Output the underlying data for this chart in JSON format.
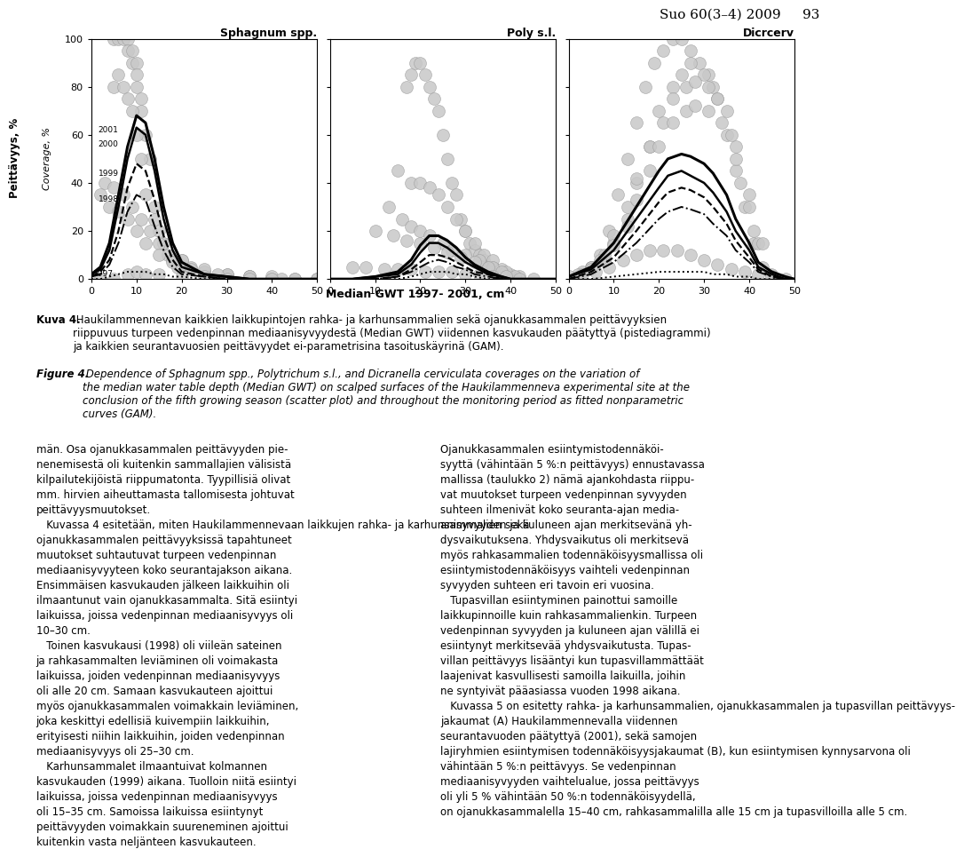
{
  "title_header": "Suo 60(3–4) 2009     93",
  "subplot_titles": [
    "Sphagnum spp.",
    "Poly s.l.",
    "Dicrcerv"
  ],
  "xlabel": "Median GWT 1997- 2001, cm",
  "ylabel1": "Peittävyys, %",
  "ylabel2": "Coverage, %",
  "ylim": [
    0,
    100
  ],
  "xlim": [
    0,
    50
  ],
  "xticks": [
    0,
    10,
    20,
    30,
    40,
    50
  ],
  "yticks": [
    0,
    20,
    40,
    60,
    80,
    100
  ],
  "years": [
    "2001",
    "2000",
    "1999",
    "1998",
    "1997"
  ],
  "scatter_color": "#c8c8c8",
  "scatter_alpha": 0.85,
  "background_color": "#ffffff",
  "scatter_size": 100,
  "sphagnum_scatter_x": [
    5,
    6,
    7,
    8,
    8,
    9,
    9,
    10,
    10,
    10,
    11,
    11,
    12,
    13,
    14,
    15,
    16,
    17,
    18,
    19,
    20,
    22,
    25,
    30,
    35,
    40,
    5,
    6,
    7,
    8,
    9,
    10,
    11,
    12,
    14,
    16,
    20,
    25,
    30,
    3,
    5,
    7,
    9,
    11,
    13,
    15,
    20,
    25,
    30,
    35,
    40,
    45,
    50,
    2,
    4,
    6,
    8,
    10,
    12,
    15,
    18,
    22,
    28,
    35,
    42,
    0,
    2,
    5,
    8,
    10,
    12,
    15,
    20,
    25,
    30,
    35,
    40,
    45,
    50
  ],
  "sphagnum_scatter_y": [
    100,
    100,
    100,
    100,
    95,
    90,
    95,
    90,
    85,
    80,
    75,
    70,
    60,
    50,
    30,
    20,
    15,
    10,
    8,
    5,
    5,
    5,
    3,
    2,
    1,
    0,
    80,
    85,
    80,
    75,
    70,
    60,
    50,
    35,
    25,
    15,
    8,
    3,
    1,
    40,
    38,
    35,
    30,
    25,
    20,
    15,
    8,
    4,
    2,
    1,
    1,
    0,
    0,
    35,
    30,
    28,
    25,
    20,
    15,
    10,
    7,
    4,
    2,
    1,
    0,
    0,
    0,
    0,
    2,
    3,
    2,
    2,
    1,
    1,
    0,
    0,
    0,
    0,
    0
  ],
  "poly_scatter_x": [
    17,
    18,
    19,
    20,
    21,
    22,
    23,
    24,
    25,
    26,
    27,
    28,
    29,
    30,
    31,
    32,
    33,
    34,
    35,
    36,
    37,
    38,
    39,
    40,
    15,
    18,
    20,
    22,
    24,
    26,
    28,
    30,
    32,
    34,
    36,
    38,
    40,
    13,
    16,
    18,
    20,
    22,
    25,
    27,
    30,
    33,
    36,
    39,
    42,
    10,
    14,
    17,
    20,
    23,
    26,
    29,
    32,
    35,
    38,
    41,
    5,
    8,
    12,
    15,
    18,
    21,
    24,
    27,
    30,
    33,
    36,
    39,
    42,
    45
  ],
  "poly_scatter_y": [
    80,
    85,
    90,
    90,
    85,
    80,
    75,
    70,
    60,
    50,
    40,
    35,
    25,
    20,
    15,
    12,
    10,
    8,
    5,
    5,
    3,
    2,
    1,
    0,
    45,
    40,
    40,
    38,
    35,
    30,
    25,
    20,
    15,
    10,
    8,
    4,
    2,
    30,
    25,
    22,
    20,
    18,
    15,
    12,
    10,
    8,
    5,
    3,
    1,
    20,
    18,
    16,
    15,
    13,
    11,
    9,
    7,
    5,
    3,
    1,
    5,
    5,
    4,
    4,
    4,
    3,
    3,
    3,
    2,
    2,
    1,
    1,
    0,
    0
  ],
  "dicrcerv_scatter_x": [
    5,
    7,
    9,
    11,
    13,
    15,
    17,
    19,
    21,
    23,
    25,
    27,
    29,
    31,
    33,
    35,
    37,
    39,
    41,
    43,
    45,
    5,
    8,
    10,
    13,
    15,
    18,
    20,
    23,
    25,
    27,
    30,
    32,
    35,
    37,
    40,
    42,
    3,
    5,
    8,
    10,
    13,
    15,
    18,
    21,
    23,
    26,
    28,
    31,
    33,
    36,
    38,
    41,
    2,
    5,
    7,
    10,
    13,
    15,
    18,
    20,
    23,
    26,
    28,
    31,
    34,
    37,
    40,
    43,
    0,
    3,
    6,
    9,
    12,
    15,
    18,
    21,
    24,
    27,
    30,
    33,
    36,
    39,
    42,
    45,
    48
  ],
  "dicrcerv_scatter_y": [
    5,
    10,
    20,
    35,
    50,
    65,
    80,
    90,
    95,
    100,
    100,
    95,
    90,
    85,
    75,
    60,
    45,
    30,
    15,
    5,
    2,
    5,
    8,
    15,
    25,
    40,
    55,
    70,
    80,
    85,
    90,
    85,
    80,
    70,
    55,
    35,
    15,
    3,
    5,
    10,
    18,
    30,
    42,
    55,
    65,
    75,
    80,
    82,
    80,
    75,
    60,
    40,
    20,
    2,
    4,
    8,
    14,
    22,
    33,
    45,
    55,
    65,
    70,
    72,
    70,
    65,
    50,
    30,
    15,
    1,
    2,
    3,
    5,
    8,
    10,
    12,
    12,
    12,
    10,
    8,
    6,
    4,
    3,
    2,
    1,
    0
  ],
  "line_styles": {
    "2001": {
      "ls": "-",
      "lw": 2.2,
      "color": "#000000"
    },
    "2000": {
      "ls": "-",
      "lw": 1.8,
      "color": "#000000"
    },
    "1999": {
      "ls": "--",
      "lw": 1.6,
      "color": "#000000"
    },
    "1998": {
      "ls": "-.",
      "lw": 1.4,
      "color": "#000000"
    },
    "1997": {
      "ls": ":",
      "lw": 1.4,
      "color": "#000000"
    }
  },
  "sphagnum_gam": {
    "2001": {
      "x": [
        0,
        2,
        4,
        6,
        8,
        10,
        12,
        14,
        16,
        18,
        20,
        25,
        30,
        35,
        40,
        45,
        50
      ],
      "y": [
        2,
        5,
        15,
        35,
        55,
        68,
        65,
        50,
        30,
        15,
        7,
        2,
        1,
        0,
        0,
        0,
        0
      ]
    },
    "2000": {
      "x": [
        0,
        2,
        4,
        6,
        8,
        10,
        12,
        14,
        16,
        18,
        20,
        25,
        30,
        35,
        40,
        45,
        50
      ],
      "y": [
        2,
        4,
        12,
        30,
        50,
        63,
        60,
        45,
        25,
        12,
        5,
        2,
        1,
        0,
        0,
        0,
        0
      ]
    },
    "1999": {
      "x": [
        0,
        2,
        4,
        6,
        8,
        10,
        12,
        14,
        16,
        18,
        20,
        25,
        30,
        35,
        40,
        45,
        50
      ],
      "y": [
        1,
        3,
        8,
        20,
        38,
        48,
        45,
        33,
        18,
        8,
        3,
        1,
        0,
        0,
        0,
        0,
        0
      ]
    },
    "1998": {
      "x": [
        0,
        2,
        4,
        6,
        8,
        10,
        12,
        14,
        16,
        18,
        20,
        25,
        30,
        35,
        40,
        45,
        50
      ],
      "y": [
        1,
        2,
        6,
        15,
        28,
        35,
        33,
        22,
        12,
        5,
        2,
        1,
        0,
        0,
        0,
        0,
        0
      ]
    },
    "1997": {
      "x": [
        0,
        2,
        4,
        6,
        8,
        10,
        12,
        14,
        16,
        18,
        20,
        25,
        30,
        35,
        40,
        45,
        50
      ],
      "y": [
        0,
        0,
        1,
        2,
        3,
        3,
        3,
        2,
        2,
        1,
        1,
        0,
        0,
        0,
        0,
        0,
        0
      ]
    }
  },
  "poly_gam": {
    "2001": {
      "x": [
        0,
        5,
        10,
        15,
        18,
        20,
        22,
        24,
        26,
        28,
        30,
        32,
        35,
        38,
        40,
        45,
        50
      ],
      "y": [
        0,
        0,
        1,
        3,
        8,
        14,
        18,
        18,
        16,
        13,
        9,
        6,
        3,
        1,
        0,
        0,
        0
      ]
    },
    "2000": {
      "x": [
        0,
        5,
        10,
        15,
        18,
        20,
        22,
        24,
        26,
        28,
        30,
        32,
        35,
        38,
        40,
        45,
        50
      ],
      "y": [
        0,
        0,
        1,
        2,
        6,
        11,
        15,
        15,
        13,
        10,
        7,
        5,
        2,
        1,
        0,
        0,
        0
      ]
    },
    "1999": {
      "x": [
        0,
        5,
        10,
        15,
        18,
        20,
        22,
        24,
        26,
        28,
        30,
        32,
        35,
        38,
        40,
        45,
        50
      ],
      "y": [
        0,
        0,
        0,
        1,
        4,
        7,
        10,
        10,
        9,
        7,
        5,
        3,
        2,
        0,
        0,
        0,
        0
      ]
    },
    "1998": {
      "x": [
        0,
        5,
        10,
        15,
        18,
        20,
        22,
        24,
        26,
        28,
        30,
        32,
        35,
        38,
        40,
        45,
        50
      ],
      "y": [
        0,
        0,
        0,
        1,
        3,
        5,
        7,
        8,
        7,
        5,
        4,
        2,
        1,
        0,
        0,
        0,
        0
      ]
    },
    "1997": {
      "x": [
        0,
        5,
        10,
        15,
        18,
        20,
        22,
        24,
        26,
        28,
        30,
        32,
        35,
        38,
        40,
        45,
        50
      ],
      "y": [
        0,
        0,
        0,
        0,
        1,
        2,
        3,
        3,
        3,
        2,
        2,
        1,
        0,
        0,
        0,
        0,
        0
      ]
    }
  },
  "dicrcerv_gam": {
    "2001": {
      "x": [
        0,
        5,
        10,
        15,
        20,
        22,
        25,
        27,
        30,
        32,
        35,
        37,
        40,
        42,
        45,
        48,
        50
      ],
      "y": [
        1,
        5,
        15,
        30,
        45,
        50,
        52,
        51,
        48,
        44,
        35,
        25,
        15,
        7,
        3,
        1,
        0
      ]
    },
    "2000": {
      "x": [
        0,
        5,
        10,
        15,
        20,
        22,
        25,
        27,
        30,
        32,
        35,
        37,
        40,
        42,
        45,
        48,
        50
      ],
      "y": [
        1,
        4,
        12,
        25,
        38,
        43,
        45,
        43,
        40,
        36,
        28,
        20,
        12,
        5,
        2,
        0,
        0
      ]
    },
    "1999": {
      "x": [
        0,
        5,
        10,
        15,
        20,
        22,
        25,
        27,
        30,
        32,
        35,
        37,
        40,
        42,
        45,
        48,
        50
      ],
      "y": [
        0,
        3,
        9,
        20,
        32,
        36,
        38,
        37,
        34,
        30,
        23,
        16,
        9,
        4,
        1,
        0,
        0
      ]
    },
    "1998": {
      "x": [
        0,
        5,
        10,
        15,
        20,
        22,
        25,
        27,
        30,
        32,
        35,
        37,
        40,
        42,
        45,
        48,
        50
      ],
      "y": [
        0,
        2,
        7,
        15,
        25,
        28,
        30,
        29,
        27,
        23,
        18,
        12,
        7,
        3,
        1,
        0,
        0
      ]
    },
    "1997": {
      "x": [
        0,
        5,
        10,
        15,
        20,
        22,
        25,
        27,
        30,
        32,
        35,
        37,
        40,
        42,
        45,
        48,
        50
      ],
      "y": [
        0,
        0,
        1,
        2,
        3,
        3,
        3,
        3,
        3,
        2,
        2,
        1,
        1,
        0,
        0,
        0,
        0
      ]
    }
  },
  "caption_fi_bold": "Kuva 4.",
  "caption_fi_normal": " Haukilammennevan kaikkien laikkupintojen rahka- ja karhunsammalien sekä ojanukkasammalen peittävyyksien\nriippuvuus turpeen vedenpinnan mediaanisyvyydestä (Median GWT) viidennen kasvukauden päätyttyä (pistediagrammi)\nja kaikkien seurantavuosien peittävyydet ei-parametrisina tasoituskäyrinä (GAM).",
  "caption_en_italic_bold": "Figure 4.",
  "caption_en_italic": " Dependence of Sphagnum spp., Polytrichum s.l., and Dicranella cerviculata coverages on the variation of\nthe median water table depth (Median GWT) on scalped surfaces of the Haukilammenneva experimental site at the\nconclusion of the fifth growing season (scatter plot) and throughout the monitoring period as fitted nonparametric\ncurves (GAM).",
  "body_left": "män. Osa ojanukkasammalen peittävyyden pie-\nnenemisestä oli kuitenkin sammallajien välisistä\nkilpailutekijöistä riippumatonta. Tyypillisiä olivat\nmm. hirvien aiheuttamasta tallomisesta johtuvat\npeittävyysmuutokset.\n   Kuvassa 4 esitetään, miten Haukilammennevaan laikkujen rahka- ja karhunsammalien sekä\nojanukkasammalen peittävyyksissä tapahtuneet\nmuutokset suhtautuvat turpeen vedenpinnan\nmediaanisyvyyteen koko seurantajakson aikana.\nEnsimmäisen kasvukauden jälkeen laikkuihin oli\nilmaantunut vain ojanukkasammalta. Sitä esiintyi\nlaikuissa, joissa vedenpinnan mediaanisyvyys oli\n10–30 cm.\n   Toinen kasvukausi (1998) oli viileän sateinen\nja rahkasammalten leviäminen oli voimakasta\nlaikuissa, joiden vedenpinnan mediaanisyvyys\noli alle 20 cm. Samaan kasvukauteen ajoittui\nmyös ojanukkasammalen voimakkain leviäminen,\njoka keskittyi edellisiä kuivempiin laikkuihin,\nerityisesti niihin laikkuihin, joiden vedenpinnan\nmediaanisyvyys oli 25–30 cm.\n   Karhunsammalet ilmaantuivat kolmannen\nkasvukauden (1999) aikana. Tuolloin niitä esiintyi\nlaikuissa, joissa vedenpinnan mediaanisyvyys\noli 15–35 cm. Samoissa laikuissa esiintynyt\npeittävyyden voimakkain suureneminen ajoittui\nkuitenkin vasta neljänteen kasvukauteen.",
  "body_right": "Ojanukkasammalen esiintymistodennäköi-\nsyyttä (vähintään 5 %:n peittävyys) ennustavassa\nmallissa (taulukko 2) nämä ajankohdasta riippu-\nvat muutokset turpeen vedenpinnan syvyyden\nsuhteen ilmenivät koko seuranta-ajan media-\nanisyvyyden ja kuluneen ajan merkitsevänä yh-\ndysvaikutuksena. Yhdysvaikutus oli merkitsevä\nmyös rahkasammalien todennäköisyysmallissa oli\nesiintymistodennäköisyys vaihteli vedenpinnan\nsyvyyden suhteen eri tavoin eri vuosina.\n   Tupasvillan esiintyminen painottui samoille\nlaikkupinnoille kuin rahkasammalienkin. Turpeen\nvedenpinnan syvyyden ja kuluneen ajan välillä ei\nesiintynyt merkitsevää yhdysvaikutusta. Tupas-\nvillan peittävyys lisääntyi kun tupasvillammättäät\nlaajenivat kasvullisesti samoilla laikuilla, joihin\nne syntyivät pääasiassa vuoden 1998 aikana.\n   Kuvassa 5 on esitetty rahka- ja karhunsammalien, ojanukkasammalen ja tupasvillan peittävyys-\njakaumat (A) Haukilammennevalla viidennen\nseurantavuoden päätyttyä (2001), sekä samojen\nlajiryhmien esiintymisen todennäköisyysjakaumat (B), kun esiintymisen kynnysarvona oli\nvähintään 5 %:n peittävyys. Se vedenpinnan\nmediaanisyvyyden vaihtelualue, jossa peittävyys\noli yli 5 % vähintään 50 %:n todennäköisyydellä,\non ojanukkasammalella 15–40 cm, rahkasammalilla alle 15 cm ja tupasvilloilla alle 5 cm."
}
